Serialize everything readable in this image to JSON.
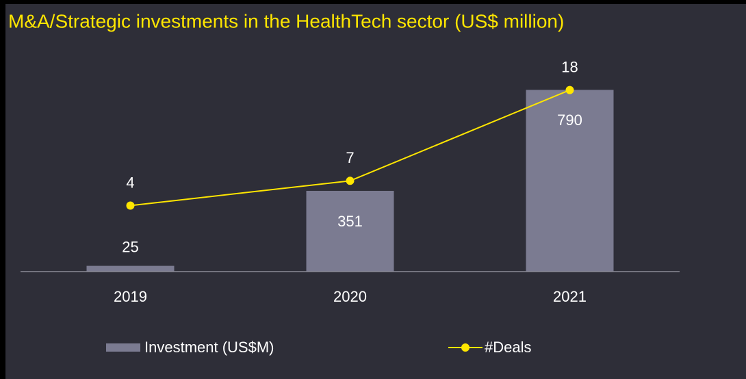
{
  "chart_data": {
    "type": "bar-line",
    "title": "M&A/Strategic investments in the HealthTech sector (US$ million)",
    "categories": [
      "2019",
      "2020",
      "2021"
    ],
    "series": [
      {
        "name": "Investment (US$M)",
        "type": "bar",
        "color": "#7b7b91",
        "values": [
          25,
          351,
          790
        ]
      },
      {
        "name": "#Deals",
        "type": "line",
        "axis": "y2",
        "color": "#ffe600",
        "values": [
          4,
          7,
          18
        ]
      }
    ],
    "ylim": [
      0,
      800
    ],
    "y2lim": [
      -4,
      18.3
    ],
    "legend": "bottom"
  }
}
